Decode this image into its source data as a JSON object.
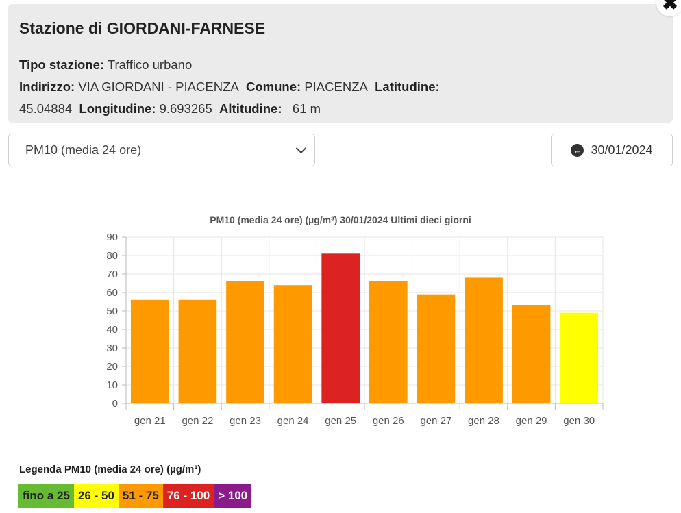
{
  "station": {
    "title": "Stazione di GIORDANI-FARNESE",
    "tipo_label": "Tipo stazione:",
    "tipo_value": "Traffico urbano",
    "indirizzo_label": "Indirizzo:",
    "indirizzo_value": "VIA GIORDANI - PIACENZA",
    "comune_label": "Comune:",
    "comune_value": "PIACENZA",
    "latitudine_label": "Latitudine:",
    "latitudine_value": "45.04884",
    "longitudine_label": "Longitudine:",
    "longitudine_value": "9.693265",
    "altitudine_label": "Altitudine:",
    "altitudine_value": "61 m"
  },
  "controls": {
    "pollutant_selected": "PM10 (media 24 ore)",
    "date": "30/01/2024"
  },
  "chart_data": {
    "type": "bar",
    "title": "PM10 (media 24 ore) (µg/m³) 30/01/2024 Ultimi dieci giorni",
    "categories": [
      "gen 21",
      "gen 22",
      "gen 23",
      "gen 24",
      "gen 25",
      "gen 26",
      "gen 27",
      "gen 28",
      "gen 29",
      "gen 30"
    ],
    "values": [
      56,
      56,
      66,
      64,
      81,
      66,
      59,
      68,
      53,
      49
    ],
    "bar_colors": [
      "#ff9900",
      "#ff9900",
      "#ff9900",
      "#ff9900",
      "#dd2222",
      "#ff9900",
      "#ff9900",
      "#ff9900",
      "#ff9900",
      "#ffff00"
    ],
    "ylim": [
      0,
      90
    ],
    "yticks": [
      "0",
      "10",
      "20",
      "30",
      "40",
      "50",
      "60",
      "70",
      "80",
      "90"
    ],
    "grid": true
  },
  "legend": {
    "title": "Legenda PM10 (media 24 ore) (µg/m³)",
    "items": [
      {
        "label": "fino a 25",
        "color": "#66bb33"
      },
      {
        "label": "26 - 50",
        "color": "#ffff00"
      },
      {
        "label": "51 - 75",
        "color": "#ff9900"
      },
      {
        "label": "76 - 100",
        "color": "#dd2222"
      },
      {
        "label": "> 100",
        "color": "#8b1a8b"
      }
    ]
  }
}
